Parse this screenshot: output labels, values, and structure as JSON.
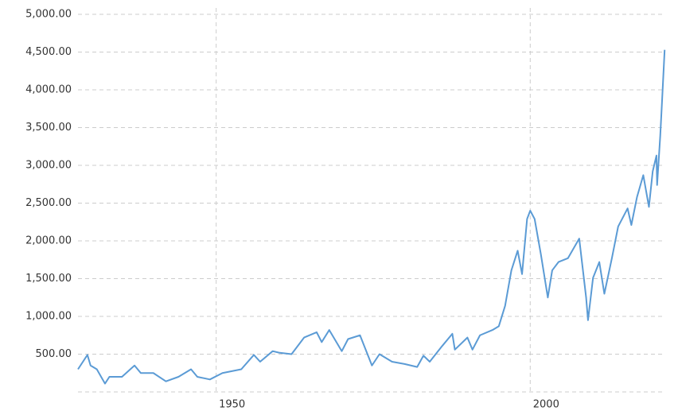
{
  "chart_data": {
    "type": "line",
    "x": [
      1928,
      1929.5,
      1930,
      1931,
      1932.3,
      1933,
      1935,
      1937,
      1938,
      1940,
      1942,
      1944,
      1946,
      1947,
      1949,
      1951,
      1954,
      1956,
      1957,
      1959,
      1960,
      1962,
      1964,
      1966,
      1966.8,
      1968,
      1970,
      1971,
      1972.9,
      1974.8,
      1976,
      1978,
      1980,
      1982,
      1983,
      1984,
      1986,
      1987.6,
      1988,
      1990,
      1990.8,
      1992,
      1994,
      1995,
      1996,
      1997,
      1998,
      1998.7,
      1999.5,
      2000,
      2000.7,
      2001.7,
      2002.8,
      2003.5,
      2004.5,
      2006,
      2007.8,
      2008.9,
      2009.2,
      2010,
      2011,
      2011.8,
      2013,
      2014,
      2015.5,
      2016.1,
      2017,
      2018,
      2018.9,
      2019.5,
      2020.1,
      2020.2,
      2020.7,
      2021,
      2021.4
    ],
    "series": [
      {
        "color": "#5b9bd5",
        "values": [
          300,
          490,
          350,
          300,
          110,
          200,
          200,
          350,
          250,
          250,
          140,
          200,
          300,
          200,
          165,
          250,
          300,
          490,
          400,
          540,
          520,
          500,
          720,
          790,
          660,
          820,
          540,
          700,
          750,
          350,
          500,
          400,
          370,
          330,
          480,
          400,
          610,
          770,
          560,
          720,
          560,
          750,
          820,
          870,
          1140,
          1610,
          1870,
          1560,
          2290,
          2400,
          2290,
          1820,
          1250,
          1610,
          1720,
          1770,
          2030,
          1250,
          950,
          1510,
          1720,
          1300,
          1770,
          2190,
          2430,
          2210,
          2580,
          2870,
          2450,
          2920,
          3130,
          2740,
          3390,
          3870,
          4530
        ]
      }
    ],
    "xlim": [
      1928,
      2021.5
    ],
    "xticks": [
      1950,
      2000
    ],
    "ylim": [
      0,
      5000
    ],
    "yticks": [
      {
        "value": 500,
        "label": "500.00"
      },
      {
        "value": 1000,
        "label": "1,000.00"
      },
      {
        "value": 1500,
        "label": "1,500.00"
      },
      {
        "value": 2000,
        "label": "2,000.00"
      },
      {
        "value": 2500,
        "label": "2,500.00"
      },
      {
        "value": 3000,
        "label": "3,000.00"
      },
      {
        "value": 3500,
        "label": "3,500.00"
      },
      {
        "value": 4000,
        "label": "4,000.00"
      },
      {
        "value": 4500,
        "label": "4,500.00"
      },
      {
        "value": 5000,
        "label": "5,000.00"
      }
    ],
    "grid": true
  }
}
